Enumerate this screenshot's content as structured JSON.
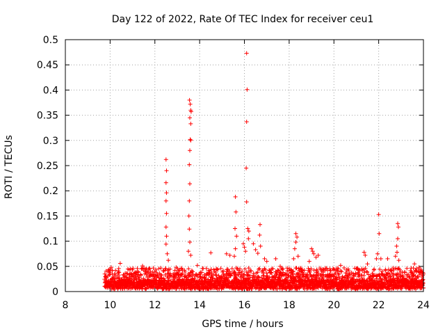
{
  "chart_data": {
    "type": "scatter",
    "title": "Day 122 of 2022, Rate Of TEC Index for receiver ceu1",
    "xlabel": "GPS time / hours",
    "ylabel": "ROTI / TECUs",
    "xlim": [
      8,
      24
    ],
    "ylim": [
      0,
      0.5
    ],
    "xticks": [
      8,
      10,
      12,
      14,
      16,
      18,
      20,
      22,
      24
    ],
    "xtick_labels": [
      "8",
      "10",
      "12",
      "14",
      "16",
      "18",
      "20",
      "22",
      "24"
    ],
    "yticks": [
      0,
      0.05,
      0.1,
      0.15,
      0.2,
      0.25,
      0.3,
      0.35,
      0.4,
      0.45,
      0.5
    ],
    "ytick_labels": [
      "0",
      "0.05",
      "0.1",
      "0.15",
      "0.2",
      "0.25",
      "0.3",
      "0.35",
      "0.4",
      "0.45",
      "0.5"
    ],
    "grid": true,
    "marker": "+",
    "color": "#ff0000",
    "series": [
      {
        "name": "ceu1",
        "points": [
          [
            12.5,
            0.262
          ],
          [
            12.52,
            0.24
          ],
          [
            12.5,
            0.216
          ],
          [
            12.52,
            0.196
          ],
          [
            12.5,
            0.18
          ],
          [
            12.52,
            0.155
          ],
          [
            12.5,
            0.128
          ],
          [
            12.52,
            0.11
          ],
          [
            12.5,
            0.094
          ],
          [
            12.55,
            0.075
          ],
          [
            12.6,
            0.062
          ],
          [
            13.55,
            0.38
          ],
          [
            13.58,
            0.372
          ],
          [
            13.6,
            0.36
          ],
          [
            13.62,
            0.357
          ],
          [
            13.56,
            0.345
          ],
          [
            13.6,
            0.333
          ],
          [
            13.58,
            0.302
          ],
          [
            13.6,
            0.3
          ],
          [
            13.56,
            0.28
          ],
          [
            13.54,
            0.252
          ],
          [
            13.56,
            0.214
          ],
          [
            13.54,
            0.18
          ],
          [
            13.52,
            0.15
          ],
          [
            13.54,
            0.124
          ],
          [
            13.56,
            0.098
          ],
          [
            13.6,
            0.072
          ],
          [
            13.5,
            0.08
          ],
          [
            16.1,
            0.473
          ],
          [
            16.12,
            0.401
          ],
          [
            16.1,
            0.337
          ],
          [
            16.08,
            0.245
          ],
          [
            16.1,
            0.178
          ],
          [
            16.15,
            0.125
          ],
          [
            16.2,
            0.12
          ],
          [
            16.18,
            0.105
          ],
          [
            16.05,
            0.08
          ],
          [
            16.0,
            0.088
          ],
          [
            15.95,
            0.095
          ],
          [
            15.6,
            0.188
          ],
          [
            15.62,
            0.158
          ],
          [
            15.58,
            0.125
          ],
          [
            15.65,
            0.11
          ],
          [
            15.6,
            0.085
          ],
          [
            15.55,
            0.07
          ],
          [
            16.7,
            0.133
          ],
          [
            16.68,
            0.112
          ],
          [
            16.72,
            0.09
          ],
          [
            16.6,
            0.076
          ],
          [
            14.5,
            0.077
          ],
          [
            15.2,
            0.075
          ],
          [
            15.35,
            0.072
          ],
          [
            16.4,
            0.095
          ],
          [
            16.5,
            0.083
          ],
          [
            16.9,
            0.065
          ],
          [
            17.0,
            0.06
          ],
          [
            17.4,
            0.065
          ],
          [
            17.6,
            0.05
          ],
          [
            18.3,
            0.115
          ],
          [
            18.35,
            0.108
          ],
          [
            18.3,
            0.098
          ],
          [
            18.25,
            0.085
          ],
          [
            18.4,
            0.07
          ],
          [
            18.2,
            0.065
          ],
          [
            19.0,
            0.085
          ],
          [
            19.05,
            0.08
          ],
          [
            19.1,
            0.075
          ],
          [
            19.2,
            0.068
          ],
          [
            19.3,
            0.072
          ],
          [
            18.9,
            0.06
          ],
          [
            10.05,
            0.048
          ],
          [
            10.1,
            0.042
          ],
          [
            10.0,
            0.035
          ],
          [
            10.45,
            0.056
          ],
          [
            11.45,
            0.051
          ],
          [
            11.6,
            0.045
          ],
          [
            12.95,
            0.048
          ],
          [
            13.05,
            0.042
          ],
          [
            13.9,
            0.052
          ],
          [
            14.3,
            0.046
          ],
          [
            14.4,
            0.042
          ],
          [
            20.2,
            0.045
          ],
          [
            20.3,
            0.052
          ],
          [
            21.35,
            0.078
          ],
          [
            21.4,
            0.072
          ],
          [
            21.5,
            0.055
          ],
          [
            21.9,
            0.065
          ],
          [
            21.95,
            0.075
          ],
          [
            22.0,
            0.153
          ],
          [
            22.02,
            0.115
          ],
          [
            22.1,
            0.065
          ],
          [
            22.4,
            0.065
          ],
          [
            22.85,
            0.135
          ],
          [
            22.88,
            0.128
          ],
          [
            22.85,
            0.105
          ],
          [
            22.8,
            0.09
          ],
          [
            22.82,
            0.078
          ],
          [
            22.75,
            0.07
          ],
          [
            22.9,
            0.062
          ],
          [
            23.6,
            0.055
          ],
          [
            23.8,
            0.048
          ],
          [
            23.9,
            0.043
          ],
          [
            24.0,
            0.035
          ]
        ]
      }
    ],
    "baseline_band": {
      "x_start": 9.75,
      "x_end": 24.0,
      "level_range": [
        0.005,
        0.035
      ],
      "description": "dense cluster of low ROTI values along the bottom"
    }
  }
}
